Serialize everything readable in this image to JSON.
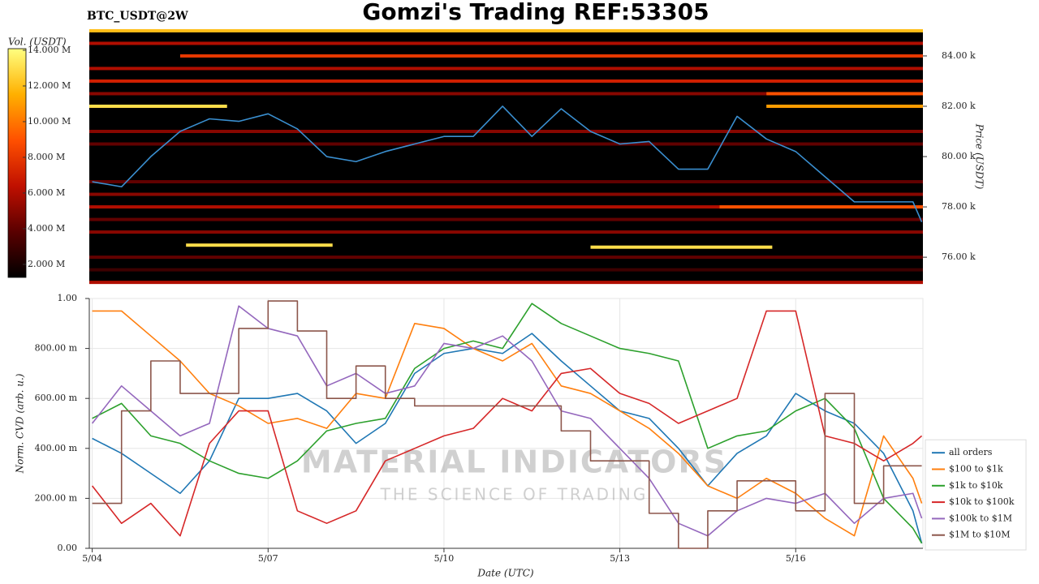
{
  "chart_data": [
    {
      "type": "heatmap",
      "title": "Gomzi's Trading REF:53305",
      "subtitle": "BTC_USDT@2W",
      "y_label": "Price (USDT)",
      "colorbar_label": "Vol. (USDT)",
      "xlim": [
        -0.05,
        14.17
      ],
      "ylim": [
        74940,
        85030
      ],
      "yticks": [
        {
          "value": 76000,
          "label": "76.00 k"
        },
        {
          "value": 78000,
          "label": "78.00 k"
        },
        {
          "value": 80000,
          "label": "80.00 k"
        },
        {
          "value": 82000,
          "label": "82.00 k"
        },
        {
          "value": 84000,
          "label": "84.00 k"
        }
      ],
      "clim": [
        1270000,
        14090000
      ],
      "cticks": [
        {
          "value": 2000000,
          "label": "2.000 M"
        },
        {
          "value": 4000000,
          "label": "4.000 M"
        },
        {
          "value": 6000000,
          "label": "6.000 M"
        },
        {
          "value": 8000000,
          "label": "8.000 M"
        },
        {
          "value": 10000000,
          "label": "10.000 M"
        },
        {
          "value": 12000000,
          "label": "12.000 M"
        },
        {
          "value": 14000000,
          "label": "14.000 M"
        }
      ],
      "colormap": [
        "#000000",
        "#5a0000",
        "#c01000",
        "#ff5000",
        "#ffb000",
        "#ffff80"
      ],
      "levels": [
        {
          "price": 85000,
          "from": -0.05,
          "to": 14.17,
          "volume": 12000000
        },
        {
          "price": 84500,
          "from": -0.05,
          "to": 14.17,
          "volume": 6000000
        },
        {
          "price": 84000,
          "from": 1.5,
          "to": 14.17,
          "volume": 8000000
        },
        {
          "price": 83500,
          "from": -0.05,
          "to": 14.17,
          "volume": 6000000
        },
        {
          "price": 83000,
          "from": -0.05,
          "to": 14.17,
          "volume": 7000000
        },
        {
          "price": 82500,
          "from": -0.05,
          "to": 11.5,
          "volume": 5000000
        },
        {
          "price": 82500,
          "from": 11.5,
          "to": 14.17,
          "volume": 9000000
        },
        {
          "price": 82000,
          "from": -0.05,
          "to": 2.3,
          "volume": 13000000
        },
        {
          "price": 82000,
          "from": 11.5,
          "to": 14.17,
          "volume": 11000000
        },
        {
          "price": 81000,
          "from": -0.05,
          "to": 14.17,
          "volume": 5000000
        },
        {
          "price": 80500,
          "from": -0.05,
          "to": 14.17,
          "volume": 4000000
        },
        {
          "price": 79000,
          "from": -0.05,
          "to": 14.17,
          "volume": 4000000
        },
        {
          "price": 78500,
          "from": -0.05,
          "to": 14.17,
          "volume": 5000000
        },
        {
          "price": 78000,
          "from": -0.05,
          "to": 10.7,
          "volume": 6000000
        },
        {
          "price": 78000,
          "from": 10.7,
          "to": 14.17,
          "volume": 9000000
        },
        {
          "price": 77500,
          "from": -0.05,
          "to": 14.17,
          "volume": 4000000
        },
        {
          "price": 77000,
          "from": -0.05,
          "to": 14.17,
          "volume": 5000000
        },
        {
          "price": 76480,
          "from": 1.6,
          "to": 4.1,
          "volume": 13000000
        },
        {
          "price": 76400,
          "from": 8.5,
          "to": 11.6,
          "volume": 13000000
        },
        {
          "price": 76000,
          "from": -0.05,
          "to": 14.17,
          "volume": 4000000
        },
        {
          "price": 75500,
          "from": -0.05,
          "to": 14.17,
          "volume": 3000000
        },
        {
          "price": 75000,
          "from": -0.05,
          "to": 14.17,
          "volume": 6000000
        }
      ],
      "x": [
        0,
        0.5,
        1,
        1.5,
        2,
        2.5,
        3,
        3.5,
        4,
        4.5,
        5,
        5.5,
        6,
        6.5,
        7,
        7.5,
        8,
        8.5,
        9,
        9.5,
        10,
        10.5,
        11,
        11.5,
        12,
        12.5,
        13,
        13.5,
        14,
        14.15
      ],
      "series": [
        {
          "name": "price",
          "color": "#3a8fd0",
          "values": [
            79000,
            78800,
            80000,
            81000,
            81500,
            81400,
            81700,
            81100,
            80000,
            79800,
            80200,
            80500,
            80800,
            80800,
            82000,
            80800,
            81900,
            81000,
            80500,
            80600,
            79500,
            79500,
            81600,
            80700,
            80200,
            79200,
            78200,
            78200,
            78200,
            77400
          ]
        }
      ]
    },
    {
      "type": "line",
      "y_label": "Norm. CVD (arb. u.)",
      "x_label": "Date (UTC)",
      "grid": true,
      "legend": "lower right",
      "watermark": {
        "title": "MATERIAL INDICATORS",
        "subtitle": "THE SCIENCE OF TRADING"
      },
      "xlim": [
        -0.05,
        14.17
      ],
      "ylim": [
        0,
        1
      ],
      "xticks": [
        {
          "value": 0,
          "label": "5/04"
        },
        {
          "value": 3,
          "label": "5/07"
        },
        {
          "value": 6,
          "label": "5/10"
        },
        {
          "value": 9,
          "label": "5/13"
        },
        {
          "value": 12,
          "label": "5/16"
        }
      ],
      "yticks": [
        {
          "value": 0,
          "label": "0.00"
        },
        {
          "value": 0.2,
          "label": "200.00 m"
        },
        {
          "value": 0.4,
          "label": "400.00 m"
        },
        {
          "value": 0.6,
          "label": "600.00 m"
        },
        {
          "value": 0.8,
          "label": "800.00 m"
        },
        {
          "value": 1,
          "label": "1.00"
        }
      ],
      "x": [
        0,
        0.5,
        1,
        1.5,
        2,
        2.5,
        3,
        3.5,
        4,
        4.5,
        5,
        5.5,
        6,
        6.5,
        7,
        7.5,
        8,
        8.5,
        9,
        9.5,
        10,
        10.5,
        11,
        11.5,
        12,
        12.5,
        13,
        13.5,
        14,
        14.15
      ],
      "series": [
        {
          "name": "all orders",
          "color": "#1f77b4",
          "values": [
            0.44,
            0.38,
            0.3,
            0.22,
            0.35,
            0.6,
            0.6,
            0.62,
            0.55,
            0.42,
            0.5,
            0.7,
            0.78,
            0.8,
            0.78,
            0.86,
            0.75,
            0.65,
            0.55,
            0.52,
            0.4,
            0.25,
            0.38,
            0.45,
            0.62,
            0.55,
            0.5,
            0.38,
            0.15,
            0.02
          ]
        },
        {
          "name": "$100 to $1k",
          "color": "#ff7f0e",
          "values": [
            0.95,
            0.95,
            0.85,
            0.75,
            0.62,
            0.57,
            0.5,
            0.52,
            0.48,
            0.62,
            0.6,
            0.9,
            0.88,
            0.8,
            0.75,
            0.82,
            0.65,
            0.62,
            0.55,
            0.48,
            0.38,
            0.25,
            0.2,
            0.28,
            0.22,
            0.12,
            0.05,
            0.45,
            0.28,
            0.18
          ]
        },
        {
          "name": "$1k to $10k",
          "color": "#2ca02c",
          "values": [
            0.52,
            0.58,
            0.45,
            0.42,
            0.35,
            0.3,
            0.28,
            0.35,
            0.47,
            0.5,
            0.52,
            0.72,
            0.8,
            0.83,
            0.8,
            0.98,
            0.9,
            0.85,
            0.8,
            0.78,
            0.75,
            0.4,
            0.45,
            0.47,
            0.55,
            0.6,
            0.48,
            0.2,
            0.08,
            0.02
          ]
        },
        {
          "name": "$10k to $100k",
          "color": "#d62728",
          "values": [
            0.25,
            0.1,
            0.18,
            0.05,
            0.42,
            0.55,
            0.55,
            0.15,
            0.1,
            0.15,
            0.35,
            0.4,
            0.45,
            0.48,
            0.6,
            0.55,
            0.7,
            0.72,
            0.62,
            0.58,
            0.5,
            0.55,
            0.6,
            0.95,
            0.95,
            0.45,
            0.42,
            0.35,
            0.42,
            0.45
          ]
        },
        {
          "name": "$100k to $1M",
          "color": "#9467bd",
          "values": [
            0.5,
            0.65,
            0.55,
            0.45,
            0.5,
            0.97,
            0.88,
            0.85,
            0.65,
            0.7,
            0.62,
            0.65,
            0.82,
            0.8,
            0.85,
            0.75,
            0.55,
            0.52,
            0.4,
            0.28,
            0.1,
            0.05,
            0.15,
            0.2,
            0.18,
            0.22,
            0.1,
            0.2,
            0.22,
            0.12
          ]
        },
        {
          "name": "$1M to $10M",
          "color": "#8c564b",
          "step": true,
          "values": [
            0.18,
            0.55,
            0.75,
            0.62,
            0.62,
            0.88,
            0.99,
            0.87,
            0.6,
            0.73,
            0.6,
            0.57,
            0.57,
            0.57,
            0.57,
            0.57,
            0.47,
            0.35,
            0.35,
            0.14,
            0.0,
            0.15,
            0.27,
            0.27,
            0.15,
            0.62,
            0.18,
            0.33,
            0.33,
            0.33
          ]
        }
      ]
    }
  ]
}
